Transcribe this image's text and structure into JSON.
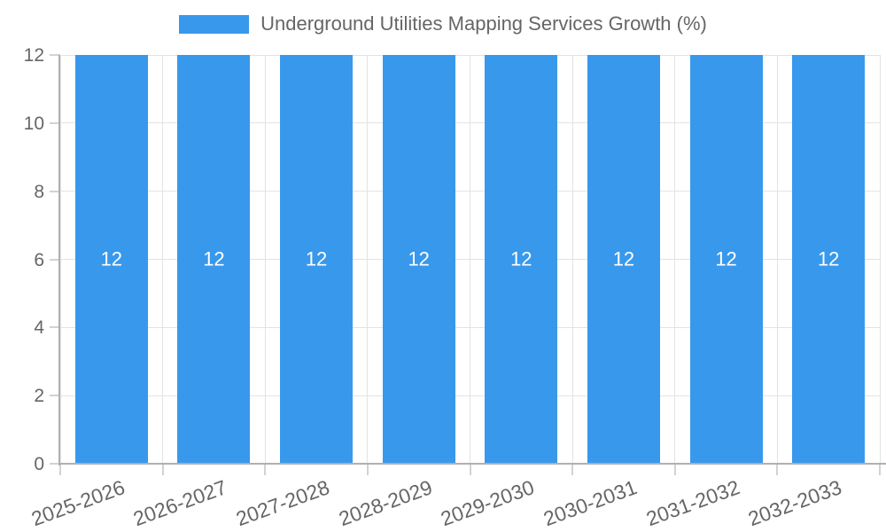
{
  "chart_data": {
    "type": "bar",
    "title": "Underground Utilities Mapping Services Growth (%)",
    "categories": [
      "2025-2026",
      "2026-2027",
      "2027-2028",
      "2028-2029",
      "2029-2030",
      "2030-2031",
      "2031-2032",
      "2032-2033"
    ],
    "values": [
      12,
      12,
      12,
      12,
      12,
      12,
      12,
      12
    ],
    "bar_labels": [
      "12",
      "12",
      "12",
      "12",
      "12",
      "12",
      "12",
      "12"
    ],
    "xlabel": "",
    "ylabel": "",
    "ylim": [
      0,
      12
    ],
    "yticks": [
      0,
      2,
      4,
      6,
      8,
      10,
      12
    ],
    "grid": true,
    "legend_position": "top",
    "colors": {
      "bar": "#3899ec",
      "bar_label": "#ffffff",
      "axis_text": "#666666",
      "grid_line": "#e3e3e3",
      "axis_line": "#b0b0b0",
      "tick_mark": "#d2d2d2"
    }
  }
}
